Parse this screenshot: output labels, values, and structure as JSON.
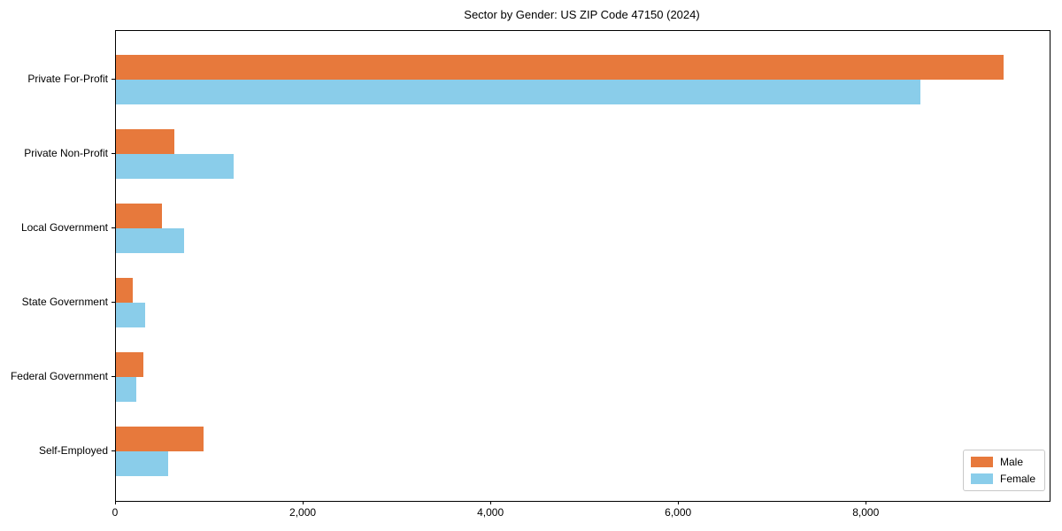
{
  "figure": {
    "title": "Sector by Gender: US ZIP Code 47150 (2024)"
  },
  "chart_data": {
    "type": "bar",
    "orientation": "horizontal",
    "title": "Sector by Gender: US ZIP Code 47150 (2024)",
    "categories": [
      "Private For-Profit",
      "Private Non-Profit",
      "Local Government",
      "State Government",
      "Federal Government",
      "Self-Employed"
    ],
    "series": [
      {
        "name": "Male",
        "color": "#e7793c",
        "values": [
          9460,
          620,
          490,
          180,
          290,
          935
        ]
      },
      {
        "name": "Female",
        "color": "#8acdea",
        "values": [
          8570,
          1255,
          730,
          315,
          215,
          555
        ]
      }
    ],
    "xlabel": "",
    "ylabel": "",
    "xlim": [
      0,
      9950
    ],
    "xticks": [
      0,
      2000,
      4000,
      6000,
      8000
    ],
    "xtick_labels": [
      "0",
      "2,000",
      "4,000",
      "6,000",
      "8,000"
    ],
    "grid": false,
    "legend": {
      "position": "lower right",
      "entries": [
        "Male",
        "Female"
      ]
    }
  }
}
